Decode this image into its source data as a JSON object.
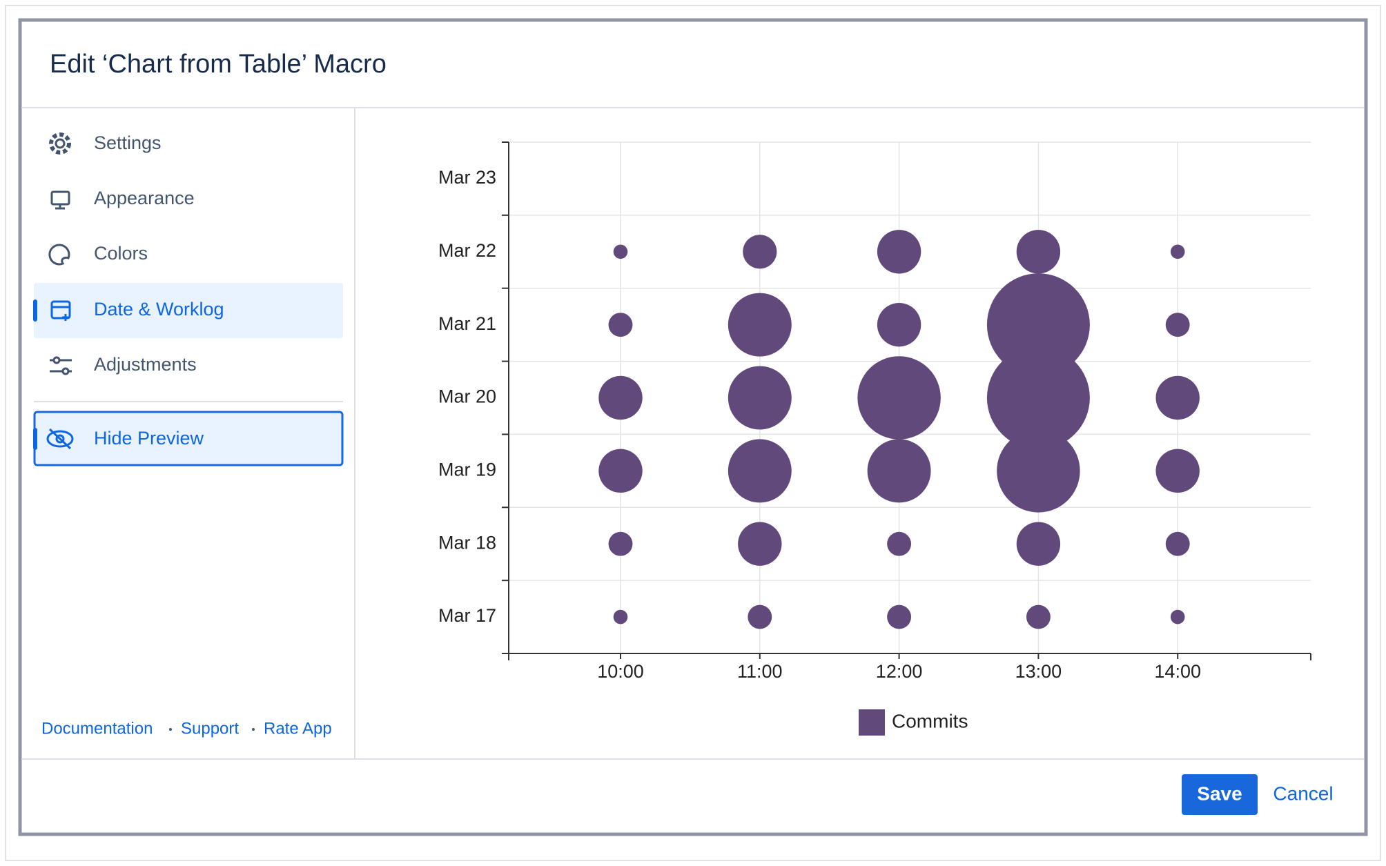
{
  "dialog": {
    "title": "Edit ‘Chart from Table’ Macro",
    "menu": [
      "Settings",
      "Appearance",
      "Colors",
      "Date & Worklog",
      "Adjustments"
    ],
    "hide_preview": "Hide Preview",
    "links": [
      "Documentation",
      "Support",
      "Rate App"
    ],
    "save": "Save",
    "cancel": "Cancel"
  },
  "chart_data": {
    "type": "bubble",
    "categories": [
      "10:00",
      "11:00",
      "12:00",
      "13:00",
      "14:00"
    ],
    "y_categories": [
      "Mar 17",
      "Mar 18",
      "Mar 19",
      "Mar 20",
      "Mar 21",
      "Mar 22",
      "Mar 23"
    ],
    "series": [
      {
        "name": "Commits",
        "color": "#614a7b",
        "values": [
          [
            1,
            2,
            2,
            2,
            1
          ],
          [
            2,
            4,
            2,
            4,
            2
          ],
          [
            4,
            6,
            6,
            8,
            4
          ],
          [
            4,
            6,
            8,
            10,
            4
          ],
          [
            2,
            6,
            4,
            10,
            2
          ],
          [
            1,
            3,
            4,
            4,
            1
          ],
          [
            null,
            null,
            null,
            null,
            null
          ]
        ]
      }
    ],
    "grid": true,
    "legend": "bottom"
  }
}
